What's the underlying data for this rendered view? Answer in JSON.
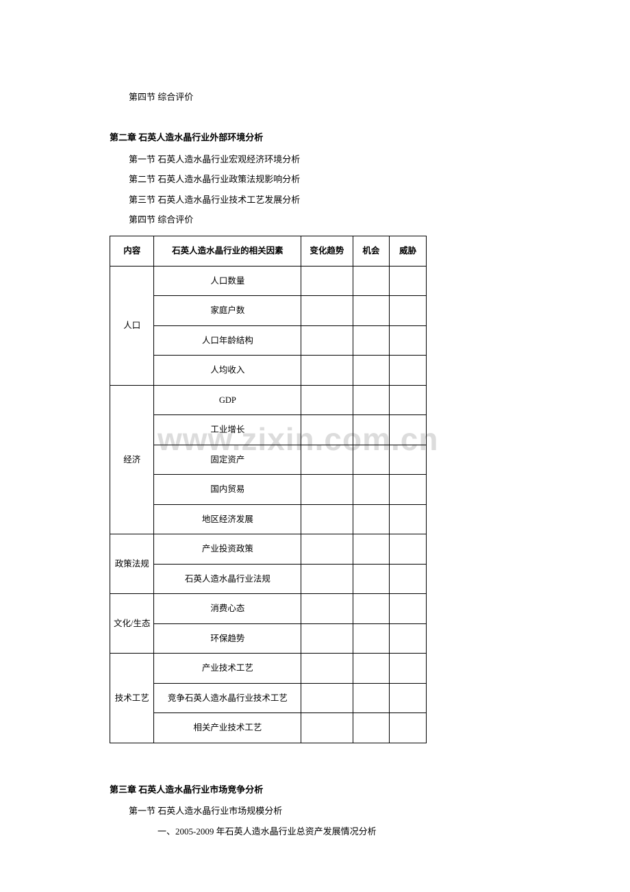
{
  "watermark": "www.zixin.com.cn",
  "top_section": {
    "item": "第四节 综合评价"
  },
  "chapter2": {
    "title": "第二章 石英人造水晶行业外部环境分析",
    "sections": [
      "第一节 石英人造水晶行业宏观经济环境分析",
      "第二节 石英人造水晶行业政策法规影响分析",
      "第三节 石英人造水晶行业技术工艺发展分析",
      "第四节 综合评价"
    ]
  },
  "table": {
    "headers": {
      "content": "内容",
      "factor": "石英人造水晶行业的相关因素",
      "trend": "变化趋势",
      "chance": "机会",
      "threat": "威胁"
    },
    "groups": [
      {
        "category": "人口",
        "rows": [
          "人口数量",
          "家庭户数",
          "人口年龄结构",
          "人均收入"
        ]
      },
      {
        "category": "经济",
        "rows": [
          "GDP",
          "工业增长",
          "固定资产",
          "国内贸易",
          "地区经济发展"
        ]
      },
      {
        "category": "政策法规",
        "rows": [
          "产业投资政策",
          "石英人造水晶行业法规"
        ]
      },
      {
        "category": "文化/生态",
        "rows": [
          "消费心态",
          "环保趋势"
        ]
      },
      {
        "category": "技术工艺",
        "rows": [
          "产业技术工艺",
          "竞争石英人造水晶行业技术工艺",
          "相关产业技术工艺"
        ]
      }
    ]
  },
  "chapter3": {
    "title": "第三章 石英人造水晶行业市场竞争分析",
    "section": "第一节 石英人造水晶行业市场规模分析",
    "subitem": "一、2005-2009 年石英人造水晶行业总资产发展情况分析"
  }
}
